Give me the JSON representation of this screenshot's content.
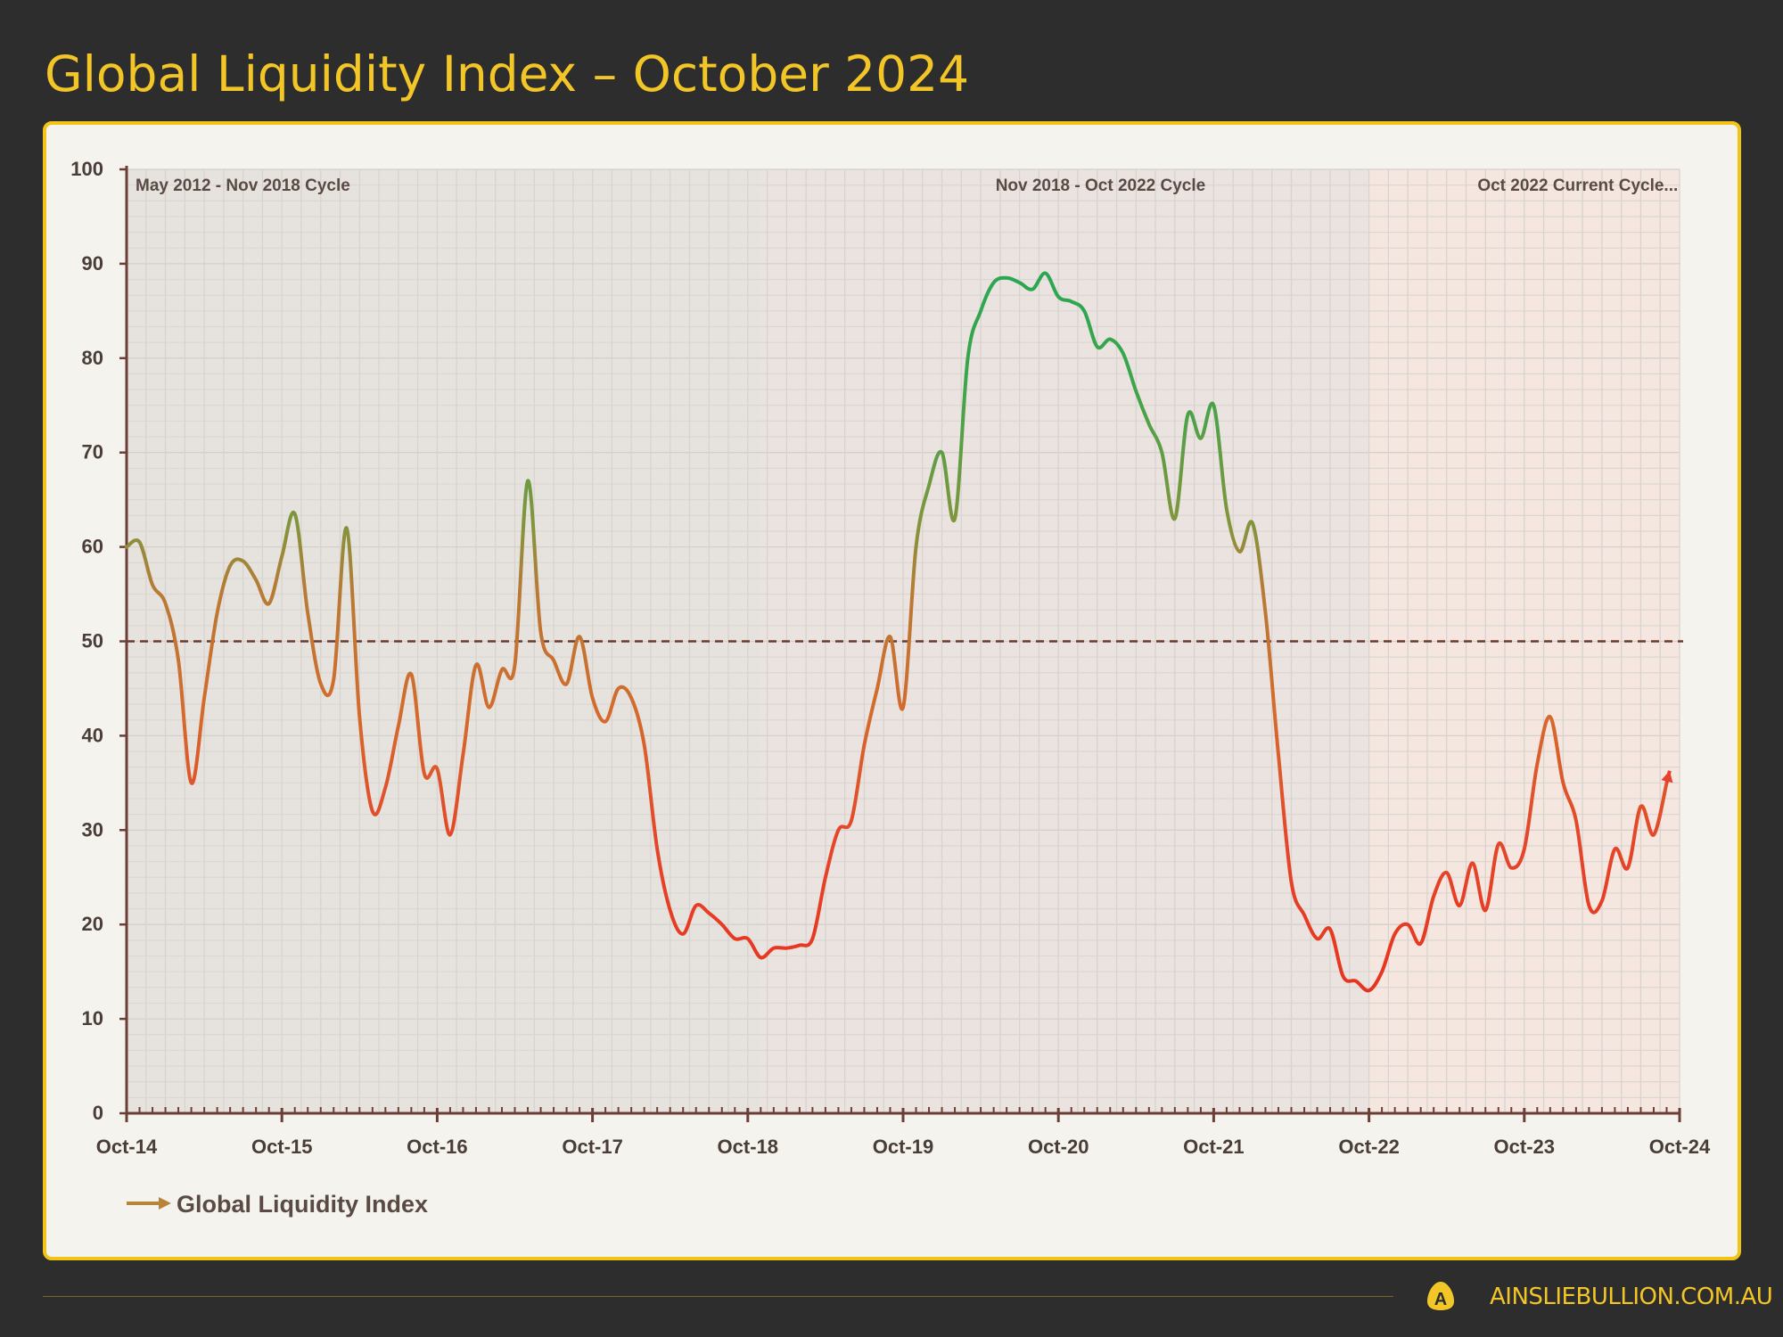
{
  "header": {
    "title": "Global Liquidity Index – October 2024"
  },
  "footer": {
    "site": "AINSLIEBULLION.COM.AU",
    "logo_letter": "A"
  },
  "colors": {
    "background": "#2e2d2d",
    "accent": "#f3c628",
    "card": "#f5f3ee",
    "high": "#2fa84f",
    "mid": "#d0702a",
    "low": "#e8321e",
    "reference_line": "#6b3a2a"
  },
  "chart_data": {
    "type": "line",
    "title": "Global Liquidity Index – October 2024",
    "xlabel": "",
    "ylabel": "",
    "ylim": [
      0,
      100
    ],
    "yticks": [
      "0",
      "10",
      "20",
      "30",
      "40",
      "50",
      "60",
      "70",
      "80",
      "90",
      "100"
    ],
    "xticks": [
      "Oct-14",
      "Oct-15",
      "Oct-16",
      "Oct-17",
      "Oct-18",
      "Oct-19",
      "Oct-20",
      "Oct-21",
      "Oct-22",
      "Oct-23",
      "Oct-24"
    ],
    "xlim": [
      "2014-10",
      "2024-10"
    ],
    "grid": true,
    "legend": {
      "position": "bottom-left",
      "entries": [
        "Global Liquidity Index"
      ]
    },
    "reference_line": {
      "y": 50,
      "style": "dashed"
    },
    "cycles": [
      {
        "label": "May 2012 - Nov 2018 Cycle",
        "start": "2014-10",
        "end": "2018-11",
        "color": "#e6e3df"
      },
      {
        "label": "Nov 2018 - Oct 2022 Cycle",
        "start": "2018-11",
        "end": "2022-10",
        "color": "#ebe3e0"
      },
      {
        "label": "Oct 2022 Current Cycle...",
        "start": "2022-10",
        "end": "2024-10",
        "color": "#f5e7e0"
      }
    ],
    "series": [
      {
        "name": "Global Liquidity Index",
        "end_marker": "arrow",
        "x": [
          "2014-10",
          "2014-11",
          "2014-12",
          "2015-01",
          "2015-02",
          "2015-03",
          "2015-04",
          "2015-05",
          "2015-06",
          "2015-07",
          "2015-08",
          "2015-09",
          "2015-10",
          "2015-11",
          "2015-12",
          "2016-01",
          "2016-02",
          "2016-03",
          "2016-04",
          "2016-05",
          "2016-06",
          "2016-07",
          "2016-08",
          "2016-09",
          "2016-10",
          "2016-11",
          "2016-12",
          "2017-01",
          "2017-02",
          "2017-03",
          "2017-04",
          "2017-05",
          "2017-06",
          "2017-07",
          "2017-08",
          "2017-09",
          "2017-10",
          "2017-11",
          "2017-12",
          "2018-01",
          "2018-02",
          "2018-03",
          "2018-04",
          "2018-05",
          "2018-06",
          "2018-07",
          "2018-08",
          "2018-09",
          "2018-10",
          "2018-11",
          "2018-12",
          "2019-01",
          "2019-02",
          "2019-03",
          "2019-04",
          "2019-05",
          "2019-06",
          "2019-07",
          "2019-08",
          "2019-09",
          "2019-10",
          "2019-11",
          "2019-12",
          "2020-01",
          "2020-02",
          "2020-03",
          "2020-04",
          "2020-05",
          "2020-06",
          "2020-07",
          "2020-08",
          "2020-09",
          "2020-10",
          "2020-11",
          "2020-12",
          "2021-01",
          "2021-02",
          "2021-03",
          "2021-04",
          "2021-05",
          "2021-06",
          "2021-07",
          "2021-08",
          "2021-09",
          "2021-10",
          "2021-11",
          "2021-12",
          "2022-01",
          "2022-02",
          "2022-03",
          "2022-04",
          "2022-05",
          "2022-06",
          "2022-07",
          "2022-08",
          "2022-09",
          "2022-10",
          "2022-11",
          "2022-12",
          "2023-01",
          "2023-02",
          "2023-03",
          "2023-04",
          "2023-05",
          "2023-06",
          "2023-07",
          "2023-08",
          "2023-09",
          "2023-10",
          "2023-11",
          "2023-12",
          "2024-01",
          "2024-02",
          "2024-03",
          "2024-04",
          "2024-05",
          "2024-06",
          "2024-07",
          "2024-08",
          "2024-09"
        ],
        "values": [
          60,
          60.5,
          56,
          54,
          48,
          35,
          44,
          53,
          58,
          58.5,
          56.5,
          54,
          59,
          63.5,
          53,
          45.5,
          46,
          62,
          42,
          32,
          34.5,
          41,
          46.5,
          36,
          36.5,
          29.5,
          38,
          47.5,
          43,
          47,
          47.5,
          67,
          51,
          48,
          45.5,
          50.5,
          44,
          41.5,
          45,
          44,
          39,
          28,
          21.5,
          19,
          22,
          21.2,
          20,
          18.5,
          18.5,
          16.5,
          17.5,
          17.5,
          17.8,
          18.5,
          25,
          30,
          31,
          39,
          45,
          50.5,
          43,
          60,
          66.5,
          70,
          63,
          80,
          85,
          88,
          88.5,
          88,
          87.3,
          89,
          86.5,
          86,
          85,
          81.2,
          82,
          80.5,
          76.5,
          73,
          70,
          63,
          74,
          71.5,
          75,
          64,
          59.5,
          62.5,
          53,
          38,
          24.5,
          21,
          18.5,
          19.5,
          14.5,
          14,
          13,
          15,
          19,
          20,
          18,
          23,
          25.5,
          22,
          26.5,
          21.5,
          28.5,
          26,
          28,
          37,
          42,
          35,
          31,
          22,
          22.5,
          28,
          26,
          32.5,
          29.5,
          35
        ]
      }
    ]
  }
}
